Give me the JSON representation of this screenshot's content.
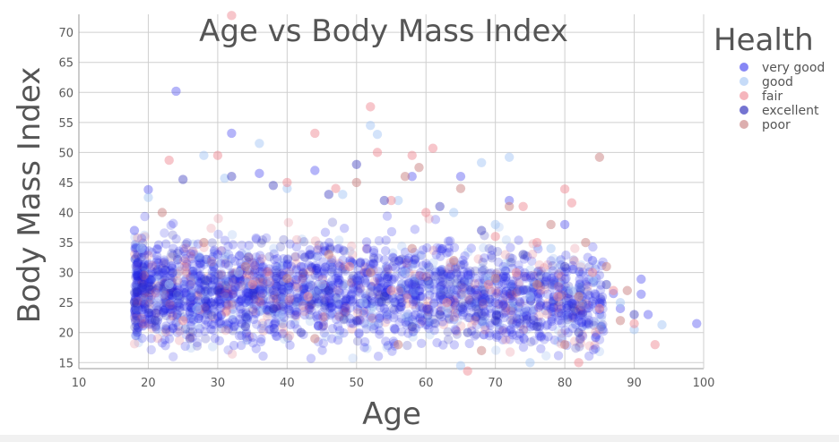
{
  "chart_data": {
    "type": "scatter",
    "title": "Age vs Body Mass Index",
    "xlabel": "Age",
    "ylabel": "Body Mass Index",
    "xlim": [
      10,
      100
    ],
    "ylim": [
      14,
      73
    ],
    "x_ticks": [
      10,
      20,
      30,
      40,
      50,
      60,
      70,
      80,
      90,
      100
    ],
    "y_ticks": [
      15,
      20,
      25,
      30,
      35,
      40,
      45,
      50,
      55,
      60,
      65,
      70
    ],
    "grid": true,
    "legend": {
      "title": "Health",
      "placement": "right",
      "entries": [
        "very good",
        "good",
        "fair",
        "excellent",
        "poor"
      ]
    },
    "series": [
      {
        "name": "very good",
        "color": "#4747f0",
        "opacity": 0.4,
        "points": [
          [
            24,
            60.2
          ],
          [
            32,
            53.2
          ],
          [
            99,
            21.5
          ],
          [
            91,
            28.9
          ],
          [
            91,
            26.4
          ],
          [
            87,
            26.5
          ],
          [
            85,
            25
          ],
          [
            20,
            43.8
          ],
          [
            36,
            46.5
          ],
          [
            44,
            47
          ],
          [
            58,
            46
          ],
          [
            65,
            46
          ],
          [
            72,
            42
          ],
          [
            80,
            38
          ],
          [
            84,
            32
          ],
          [
            88,
            24
          ],
          [
            92,
            23
          ],
          [
            18,
            37
          ],
          [
            22,
            30
          ],
          [
            26,
            28
          ],
          [
            30,
            33
          ],
          [
            34,
            25
          ],
          [
            38,
            27
          ],
          [
            42,
            31
          ],
          [
            46,
            26
          ],
          [
            50,
            29
          ],
          [
            54,
            24
          ],
          [
            58,
            28
          ],
          [
            62,
            26
          ],
          [
            66,
            30
          ],
          [
            70,
            25
          ],
          [
            74,
            27
          ],
          [
            78,
            24
          ],
          [
            82,
            22
          ]
        ]
      },
      {
        "name": "good",
        "color": "#a8c8f5",
        "opacity": 0.5,
        "points": [
          [
            36,
            51.5
          ],
          [
            52,
            54.5
          ],
          [
            53,
            53
          ],
          [
            72,
            49.2
          ],
          [
            68,
            48.3
          ],
          [
            28,
            49.5
          ],
          [
            94,
            21.3
          ],
          [
            90,
            20.5
          ],
          [
            75,
            15
          ],
          [
            65,
            14.5
          ],
          [
            20,
            42.5
          ],
          [
            31,
            45.7
          ],
          [
            40,
            44
          ],
          [
            48,
            43
          ],
          [
            56,
            42
          ],
          [
            64,
            40
          ],
          [
            70,
            38
          ],
          [
            78,
            34
          ],
          [
            84,
            29
          ],
          [
            88,
            25
          ],
          [
            19,
            34
          ],
          [
            23,
            28
          ],
          [
            27,
            24
          ],
          [
            33,
            30
          ],
          [
            39,
            23
          ],
          [
            45,
            28
          ],
          [
            51,
            25
          ],
          [
            57,
            30
          ],
          [
            63,
            24
          ],
          [
            69,
            29
          ],
          [
            75,
            26
          ],
          [
            81,
            27
          ]
        ]
      },
      {
        "name": "fair",
        "color": "#ef8e98",
        "opacity": 0.5,
        "points": [
          [
            32,
            72.8
          ],
          [
            52,
            57.6
          ],
          [
            44,
            53.2
          ],
          [
            61,
            50.7
          ],
          [
            53,
            50
          ],
          [
            58,
            49.5
          ],
          [
            23,
            48.7
          ],
          [
            30,
            49.5
          ],
          [
            80,
            43.9
          ],
          [
            81,
            41.6
          ],
          [
            74,
            41
          ],
          [
            66,
            13.6
          ],
          [
            82,
            15
          ],
          [
            93,
            18
          ],
          [
            90,
            21.5
          ],
          [
            40,
            45
          ],
          [
            47,
            44
          ],
          [
            55,
            42
          ],
          [
            60,
            40
          ],
          [
            70,
            36
          ],
          [
            76,
            35
          ],
          [
            84,
            30
          ],
          [
            87,
            27
          ],
          [
            25,
            22
          ],
          [
            35,
            28
          ],
          [
            43,
            26
          ],
          [
            49,
            31
          ],
          [
            55,
            27
          ],
          [
            63,
            25
          ],
          [
            69,
            28
          ],
          [
            73,
            30
          ],
          [
            79,
            26
          ],
          [
            85,
            24
          ]
        ]
      },
      {
        "name": "excellent",
        "color": "#2a2ab8",
        "opacity": 0.4,
        "points": [
          [
            25,
            45.5
          ],
          [
            32,
            46
          ],
          [
            38,
            44.5
          ],
          [
            46,
            43
          ],
          [
            50,
            48
          ],
          [
            54,
            42
          ],
          [
            62,
            41
          ],
          [
            68,
            37
          ],
          [
            74,
            33
          ],
          [
            80,
            31
          ],
          [
            86,
            28
          ],
          [
            90,
            23
          ],
          [
            18,
            25
          ],
          [
            21,
            22
          ],
          [
            26,
            19
          ],
          [
            30,
            27
          ],
          [
            34,
            21
          ],
          [
            38,
            24
          ],
          [
            42,
            20
          ],
          [
            46,
            27
          ],
          [
            50,
            22
          ],
          [
            54,
            26
          ],
          [
            58,
            21
          ],
          [
            62,
            23
          ],
          [
            66,
            20
          ],
          [
            70,
            22
          ],
          [
            76,
            21
          ],
          [
            82,
            20
          ]
        ]
      },
      {
        "name": "poor",
        "color": "#c98282",
        "opacity": 0.5,
        "points": [
          [
            85,
            49.2
          ],
          [
            59,
            47.5
          ],
          [
            57,
            46
          ],
          [
            50,
            45
          ],
          [
            65,
            44
          ],
          [
            72,
            41
          ],
          [
            78,
            38
          ],
          [
            83,
            35
          ],
          [
            86,
            31
          ],
          [
            89,
            27
          ],
          [
            22,
            40
          ],
          [
            28,
            35
          ],
          [
            34,
            31
          ],
          [
            40,
            29
          ],
          [
            46,
            33
          ],
          [
            52,
            30
          ],
          [
            58,
            34
          ],
          [
            64,
            32
          ],
          [
            70,
            29
          ],
          [
            76,
            28
          ],
          [
            82,
            26
          ],
          [
            88,
            22
          ],
          [
            44,
            19
          ],
          [
            56,
            18
          ],
          [
            68,
            17
          ],
          [
            80,
            18
          ]
        ]
      }
    ]
  }
}
